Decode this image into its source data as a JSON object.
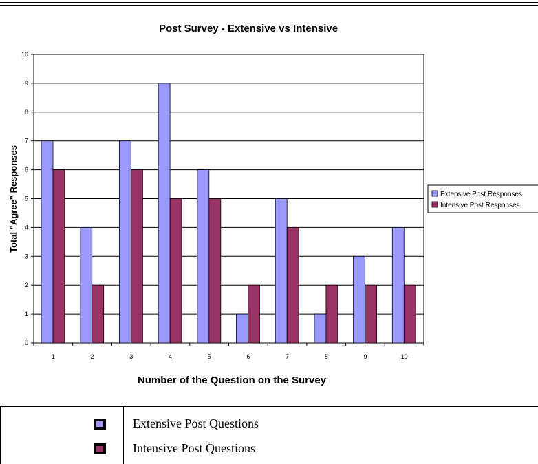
{
  "chart_data": {
    "type": "bar",
    "title": "Post Survey - Extensive vs Intensive",
    "xlabel": "Number of the Question on the Survey",
    "ylabel": "Total \"Agree\" Responses",
    "categories": [
      "1",
      "2",
      "3",
      "4",
      "5",
      "6",
      "7",
      "8",
      "9",
      "10"
    ],
    "ylim": [
      0,
      10
    ],
    "yticks": [
      "0",
      "1",
      "2",
      "3",
      "4",
      "5",
      "6",
      "7",
      "8",
      "9",
      "10"
    ],
    "grid": true,
    "legend_position": "right",
    "series": [
      {
        "name": "Extensive Post Responses",
        "color": "#9999ff",
        "values": [
          7,
          4,
          7,
          9,
          6,
          1,
          5,
          1,
          3,
          4
        ]
      },
      {
        "name": "Intensive Post Responses",
        "color": "#993366",
        "values": [
          6,
          2,
          6,
          5,
          5,
          2,
          4,
          2,
          2,
          2
        ]
      }
    ]
  },
  "key_table": {
    "rows": [
      {
        "label": "Extensive Post Questions",
        "color": "#9999ff"
      },
      {
        "label": "Intensive Post Questions",
        "color": "#993366"
      }
    ]
  }
}
